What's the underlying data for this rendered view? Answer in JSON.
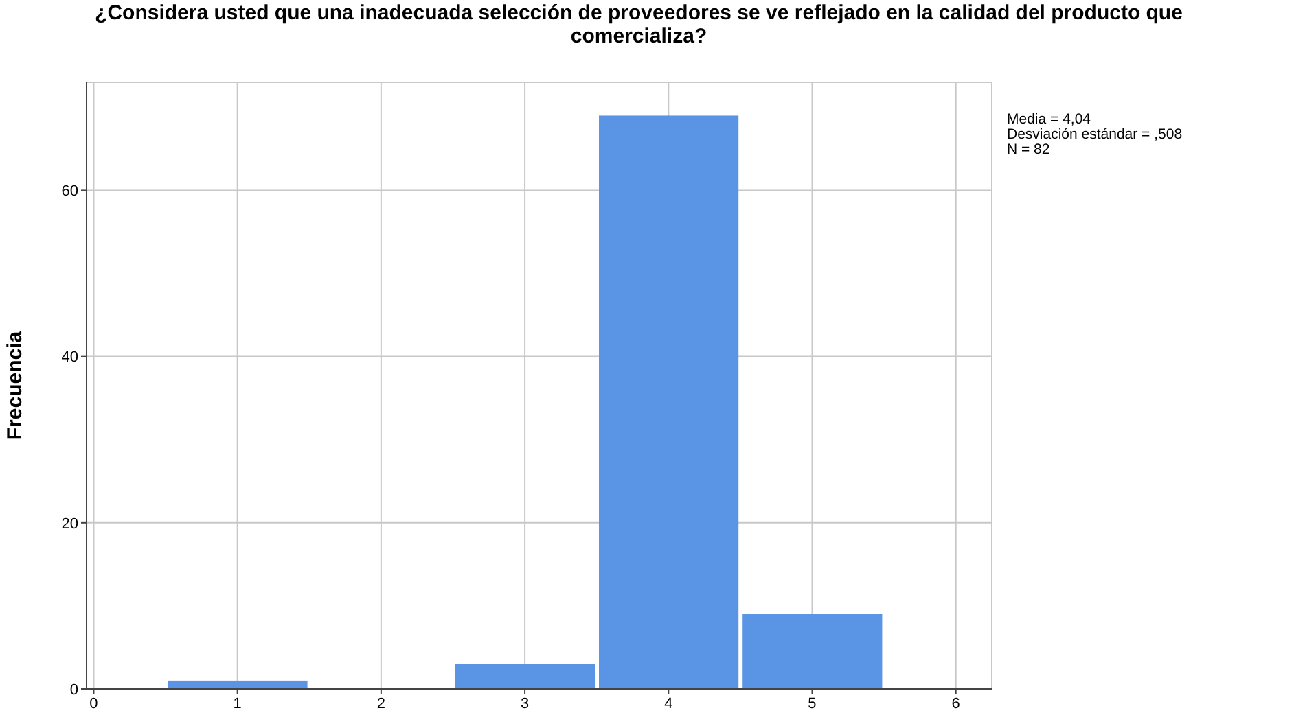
{
  "chart_data": {
    "type": "histogram",
    "title": "¿Considera usted que una inadecuada selección de proveedores se ve reflejado en la calidad del producto que comercializa?",
    "ylabel": "Frecuencia",
    "bins": [
      0.5,
      1.5,
      2.5,
      3.5,
      4.5,
      5.5
    ],
    "values": [
      1,
      0,
      3,
      69,
      9
    ],
    "color": "#5a95e5",
    "xlim": [
      -0.05,
      6.25
    ],
    "xticks": [
      0,
      1,
      2,
      3,
      4,
      5,
      6
    ],
    "ylim": [
      0,
      73
    ],
    "yticks": [
      0,
      20,
      40,
      60
    ],
    "grid": true,
    "annotations": [
      "Media = 4,04",
      "Desviación estándar = ,508",
      "N = 82"
    ]
  }
}
